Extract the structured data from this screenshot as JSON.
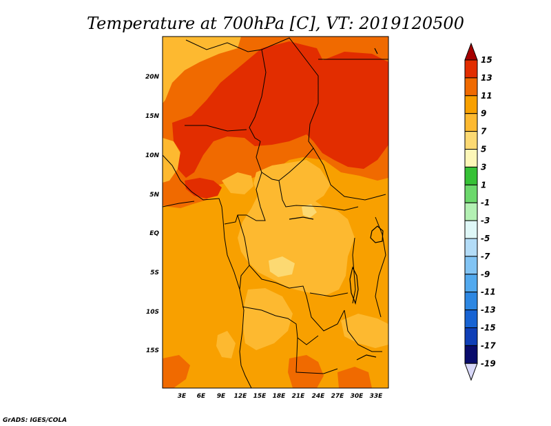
{
  "title": "Temperature at 700hPa [C], VT: 2019120500",
  "credit": "GrADS: IGES/COLA",
  "lat_labels": [
    "20N",
    "15N",
    "10N",
    "5N",
    "EQ",
    "5S",
    "10S",
    "15S"
  ],
  "lon_labels": [
    "3E",
    "6E",
    "9E",
    "12E",
    "15E",
    "18E",
    "21E",
    "24E",
    "27E",
    "30E",
    "33E"
  ],
  "colorbar": {
    "labels": [
      "15",
      "13",
      "11",
      "9",
      "7",
      "5",
      "3",
      "1",
      "-1",
      "-3",
      "-5",
      "-7",
      "-9",
      "-11",
      "-13",
      "-15",
      "-17",
      "-19"
    ],
    "colors": [
      "#a50000",
      "#e22d00",
      "#f06a00",
      "#f8a000",
      "#fdb930",
      "#fcd972",
      "#fdf7b8",
      "#36c136",
      "#6cd86c",
      "#b3f0b3",
      "#dff7f7",
      "#b3dcf7",
      "#82c4f4",
      "#52a9ee",
      "#2d87e2",
      "#1763d3",
      "#0f3fb7",
      "#090c6c",
      "#d8d8f8"
    ]
  },
  "map_colors": {
    "c5": "#fcd972",
    "c7": "#fdb930",
    "c9": "#f8a000",
    "c11": "#f06a00",
    "c13": "#e22d00",
    "border": "#000000"
  }
}
